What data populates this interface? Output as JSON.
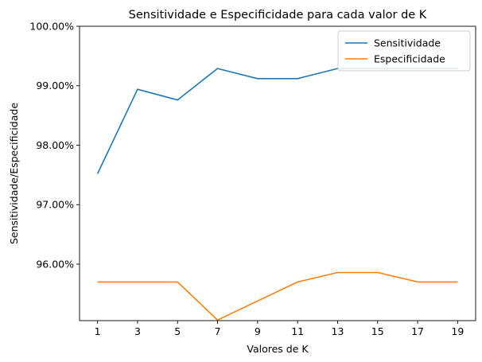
{
  "chart_data": {
    "type": "line",
    "title": "Sensitividade e Especificidade para cada valor de K",
    "xlabel": "Valores de K",
    "ylabel": "Sensitividade/Especificidade",
    "x": [
      1,
      3,
      5,
      7,
      9,
      11,
      13,
      15,
      17,
      19
    ],
    "xticks": [
      "1",
      "3",
      "5",
      "7",
      "9",
      "11",
      "13",
      "15",
      "17",
      "19"
    ],
    "yticks": [
      96,
      97,
      98,
      99,
      100
    ],
    "ytick_labels": [
      "96.00%",
      "97.00%",
      "98.00%",
      "99.00%",
      "100.00%"
    ],
    "ylim": [
      95.05,
      100
    ],
    "xlim": [
      0.1,
      19.9
    ],
    "grid": false,
    "legend_position": "top-right",
    "series": [
      {
        "name": "Sensitividade",
        "color": "#1f77b4",
        "values": [
          97.52,
          98.94,
          98.76,
          99.29,
          99.12,
          99.12,
          99.29,
          99.29,
          99.29,
          99.29
        ]
      },
      {
        "name": "Especificidade",
        "color": "#ff7f0e",
        "values": [
          95.7,
          95.7,
          95.7,
          95.06,
          95.38,
          95.7,
          95.86,
          95.86,
          95.7,
          95.7
        ]
      }
    ]
  }
}
